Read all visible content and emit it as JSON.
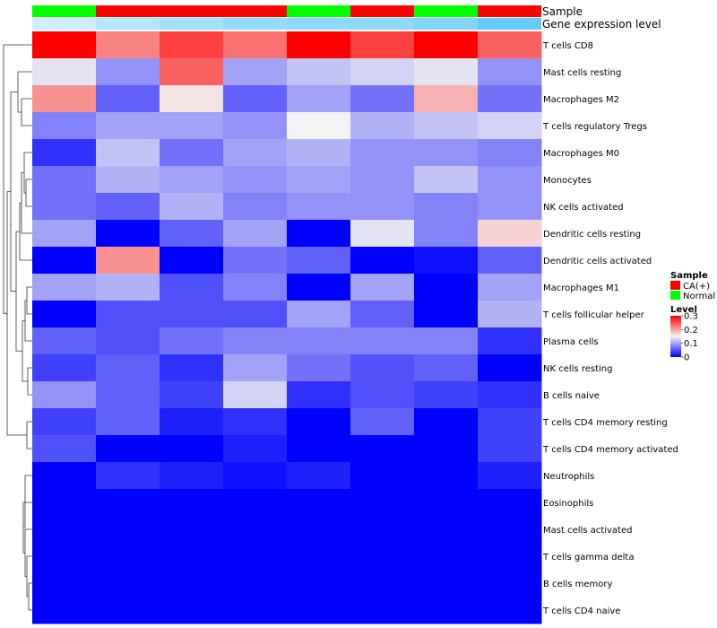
{
  "chart_data": {
    "type": "heatmap",
    "annotation_labels": [
      "Sample",
      "Gene expression level"
    ],
    "row_labels": [
      "T cells CD8",
      "Mast cells resting",
      "Macrophages M2",
      "T cells regulatory  Tregs",
      "Macrophages M0",
      "Monocytes",
      "NK cells activated",
      "Dendritic cells resting",
      "Dendritic cells activated",
      "Macrophages M1",
      "T cells follicular helper",
      "Plasma cells",
      "NK cells resting",
      "B cells naive",
      "T cells CD4 memory resting",
      "T cells CD4 memory activated",
      "Neutrophils",
      "Eosinophils",
      "Mast cells activated",
      "T cells gamma delta",
      "B cells memory",
      "T cells CD4 naive"
    ],
    "sample_groups": [
      "Normal",
      "CA(+)",
      "CA(+)",
      "CA(+)",
      "Normal",
      "CA(+)",
      "Normal",
      "CA(+)"
    ],
    "expression_levels": [
      0.3,
      0.45,
      0.55,
      0.65,
      0.7,
      0.7,
      0.75,
      0.95
    ],
    "values": [
      [
        0.3,
        0.22,
        0.26,
        0.23,
        0.3,
        0.26,
        0.3,
        0.24
      ],
      [
        0.14,
        0.09,
        0.24,
        0.1,
        0.12,
        0.13,
        0.14,
        0.09
      ],
      [
        0.21,
        0.06,
        0.16,
        0.06,
        0.1,
        0.07,
        0.19,
        0.07
      ],
      [
        0.08,
        0.1,
        0.1,
        0.09,
        0.15,
        0.11,
        0.12,
        0.13
      ],
      [
        0.03,
        0.12,
        0.07,
        0.1,
        0.11,
        0.09,
        0.09,
        0.08
      ],
      [
        0.07,
        0.11,
        0.1,
        0.09,
        0.1,
        0.09,
        0.12,
        0.09
      ],
      [
        0.07,
        0.06,
        0.11,
        0.08,
        0.09,
        0.09,
        0.08,
        0.09
      ],
      [
        0.1,
        0.0,
        0.06,
        0.1,
        0.0,
        0.14,
        0.08,
        0.17
      ],
      [
        0.0,
        0.21,
        0.0,
        0.07,
        0.06,
        0.0,
        0.01,
        0.06
      ],
      [
        0.1,
        0.11,
        0.05,
        0.08,
        0.0,
        0.1,
        0.0,
        0.1
      ],
      [
        0.0,
        0.05,
        0.05,
        0.05,
        0.1,
        0.06,
        0.0,
        0.11
      ],
      [
        0.06,
        0.05,
        0.07,
        0.08,
        0.08,
        0.08,
        0.08,
        0.03
      ],
      [
        0.04,
        0.06,
        0.03,
        0.1,
        0.07,
        0.05,
        0.06,
        0.0
      ],
      [
        0.09,
        0.06,
        0.04,
        0.13,
        0.03,
        0.05,
        0.04,
        0.03
      ],
      [
        0.04,
        0.06,
        0.02,
        0.03,
        0.0,
        0.06,
        0.0,
        0.04
      ],
      [
        0.05,
        0.0,
        0.0,
        0.02,
        0.0,
        0.0,
        0.0,
        0.04
      ],
      [
        0.0,
        0.03,
        0.02,
        0.01,
        0.02,
        0.0,
        0.0,
        0.02
      ],
      [
        0.0,
        0.0,
        0.0,
        0.0,
        0.0,
        0.0,
        0.0,
        0.0
      ],
      [
        0.0,
        0.0,
        0.0,
        0.0,
        0.0,
        0.0,
        0.0,
        0.0
      ],
      [
        0.0,
        0.0,
        0.0,
        0.0,
        0.0,
        0.0,
        0.0,
        0.0
      ],
      [
        0.0,
        0.0,
        0.0,
        0.0,
        0.0,
        0.0,
        0.0,
        0.0
      ],
      [
        0.0,
        0.0,
        0.0,
        0.0,
        0.0,
        0.0,
        0.0,
        0.0
      ]
    ],
    "color_scale": {
      "low": "#0000ff",
      "mid": "#f3f3f3",
      "high": "#ff0000",
      "domain": [
        0,
        0.15,
        0.3
      ]
    },
    "sample_colors": {
      "CA(+)": "#ff0000",
      "Normal": "#00ff00"
    },
    "expression_colors": {
      "low": "#ffffff",
      "high": "#5bc8f5"
    },
    "legend": {
      "sample_title": "Sample",
      "sample_entries": [
        "CA(+)",
        "Normal"
      ],
      "level_title": "Level",
      "level_ticks": [
        0.3,
        0.2,
        0.1,
        0
      ],
      "placement": "right"
    }
  }
}
